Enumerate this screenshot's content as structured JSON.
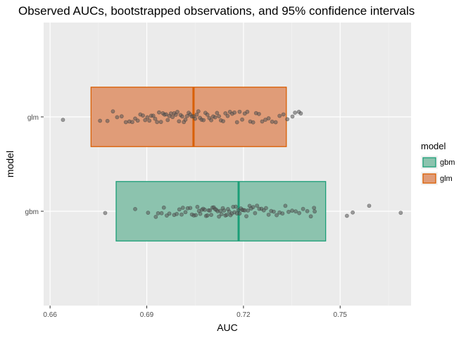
{
  "chart_data": {
    "type": "boxplot-jitter",
    "title": "Observed AUCs, bootstrapped observations, and 95% confidence intervals",
    "xlabel": "AUC",
    "ylabel": "model",
    "xlim": [
      0.658,
      0.772
    ],
    "x_ticks": [
      "0.66",
      "0.69",
      "0.72",
      "0.75"
    ],
    "categories": [
      "gbm",
      "glm"
    ],
    "grid": true,
    "legend": {
      "title": "model",
      "placement": "right",
      "entries": [
        "gbm",
        "glm"
      ]
    },
    "colors": {
      "gbm_fill": "#8cc3ae",
      "gbm_line": "#1b9e77",
      "glm_fill": "#e09c78",
      "glm_line": "#d95f02",
      "panel": "#ebebeb",
      "point": "#555555"
    },
    "series": [
      {
        "name": "gbm",
        "observed_auc": 0.7185,
        "ci_low": 0.6805,
        "ci_high": 0.7455,
        "bootstrap_auc": [
          0.6771,
          0.6864,
          0.6904,
          0.6928,
          0.6935,
          0.6946,
          0.6953,
          0.6962,
          0.697,
          0.6985,
          0.6993,
          0.7001,
          0.7008,
          0.7012,
          0.702,
          0.7027,
          0.7035,
          0.704,
          0.7046,
          0.7052,
          0.7057,
          0.7062,
          0.7066,
          0.7071,
          0.7075,
          0.708,
          0.7084,
          0.7088,
          0.7092,
          0.7096,
          0.71,
          0.7104,
          0.7108,
          0.7112,
          0.7116,
          0.712,
          0.7124,
          0.7128,
          0.7132,
          0.7136,
          0.714,
          0.7144,
          0.7148,
          0.7152,
          0.7156,
          0.716,
          0.7164,
          0.7168,
          0.7172,
          0.7176,
          0.718,
          0.7184,
          0.7188,
          0.7192,
          0.7196,
          0.72,
          0.7204,
          0.7209,
          0.7214,
          0.7219,
          0.7224,
          0.723,
          0.7236,
          0.7242,
          0.7249,
          0.7256,
          0.7263,
          0.727,
          0.7278,
          0.7286,
          0.7294,
          0.7303,
          0.7312,
          0.7321,
          0.733,
          0.734,
          0.7351,
          0.7362,
          0.7373,
          0.7385,
          0.7398,
          0.7409,
          0.7419,
          0.7421,
          0.7521,
          0.7539,
          0.759,
          0.7688
        ]
      },
      {
        "name": "glm",
        "observed_auc": 0.7045,
        "ci_low": 0.6727,
        "ci_high": 0.7333,
        "bootstrap_auc": [
          0.664,
          0.6755,
          0.6778,
          0.6795,
          0.6808,
          0.6822,
          0.6835,
          0.6846,
          0.6855,
          0.6864,
          0.6872,
          0.688,
          0.6888,
          0.6895,
          0.6902,
          0.6908,
          0.6914,
          0.692,
          0.6926,
          0.6932,
          0.6938,
          0.6944,
          0.695,
          0.6955,
          0.696,
          0.6965,
          0.697,
          0.6975,
          0.698,
          0.6985,
          0.699,
          0.6995,
          0.7,
          0.7005,
          0.701,
          0.7015,
          0.702,
          0.7025,
          0.703,
          0.7035,
          0.704,
          0.7045,
          0.705,
          0.7055,
          0.706,
          0.7065,
          0.707,
          0.7076,
          0.7082,
          0.7088,
          0.7094,
          0.71,
          0.7106,
          0.7112,
          0.7118,
          0.7124,
          0.713,
          0.7137,
          0.7144,
          0.7151,
          0.7158,
          0.7165,
          0.7172,
          0.718,
          0.7188,
          0.7196,
          0.7204,
          0.7212,
          0.7221,
          0.723,
          0.7239,
          0.7248,
          0.7258,
          0.7268,
          0.7278,
          0.7289,
          0.73,
          0.7312,
          0.7324,
          0.7336,
          0.7352,
          0.736,
          0.7372,
          0.7378
        ]
      }
    ]
  }
}
